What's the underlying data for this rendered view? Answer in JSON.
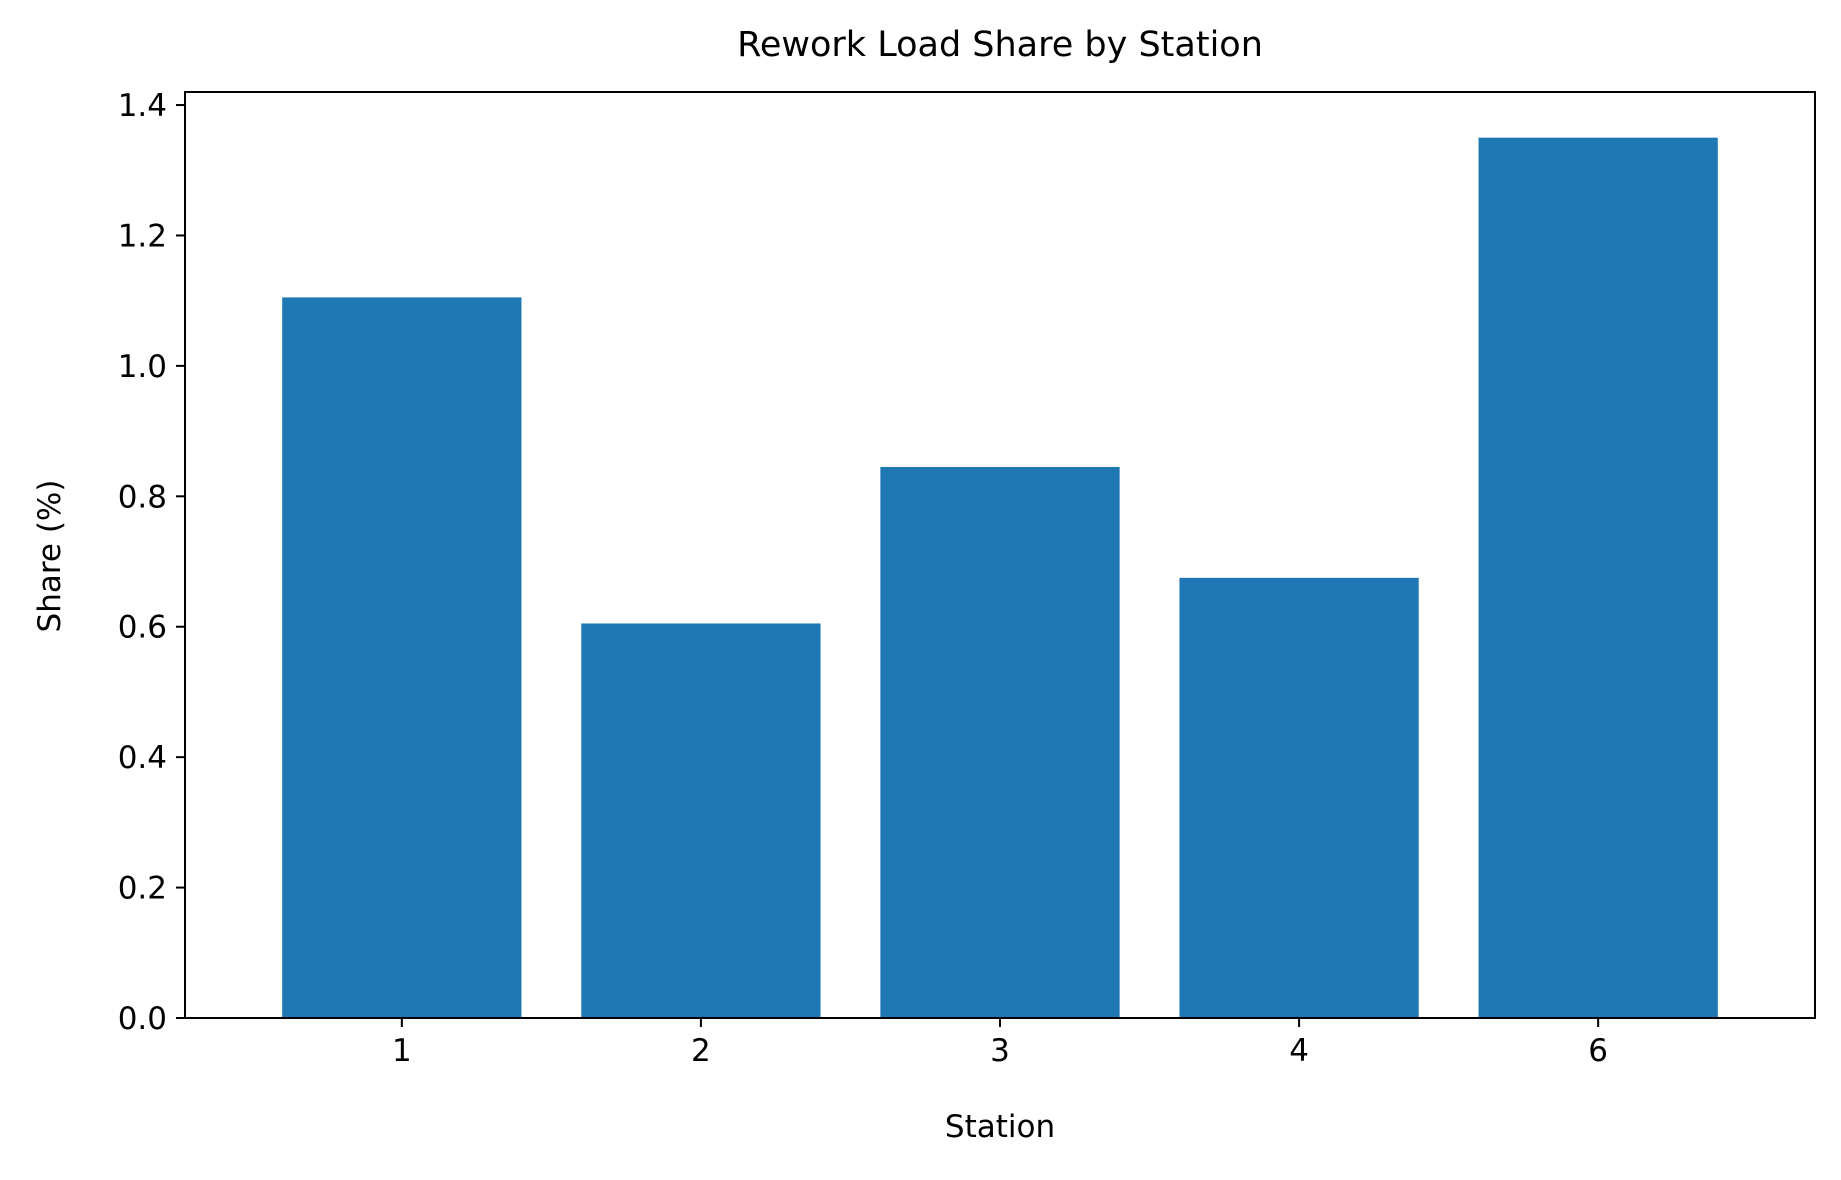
{
  "chart_data": {
    "type": "bar",
    "title": "Rework Load Share by Station",
    "xlabel": "Station",
    "ylabel": "Share (%)",
    "categories": [
      "1",
      "2",
      "3",
      "4",
      "6"
    ],
    "values": [
      1.105,
      0.605,
      0.845,
      0.675,
      1.35
    ],
    "ylim": [
      0,
      1.42
    ],
    "yticks": [
      0.0,
      0.2,
      0.4,
      0.6,
      0.8,
      1.0,
      1.2,
      1.4
    ],
    "ytick_labels": [
      "0.0",
      "0.2",
      "0.4",
      "0.6",
      "0.8",
      "1.0",
      "1.2",
      "1.4"
    ],
    "grid": false,
    "legend": "none",
    "bar_color": "#1f77b4"
  }
}
